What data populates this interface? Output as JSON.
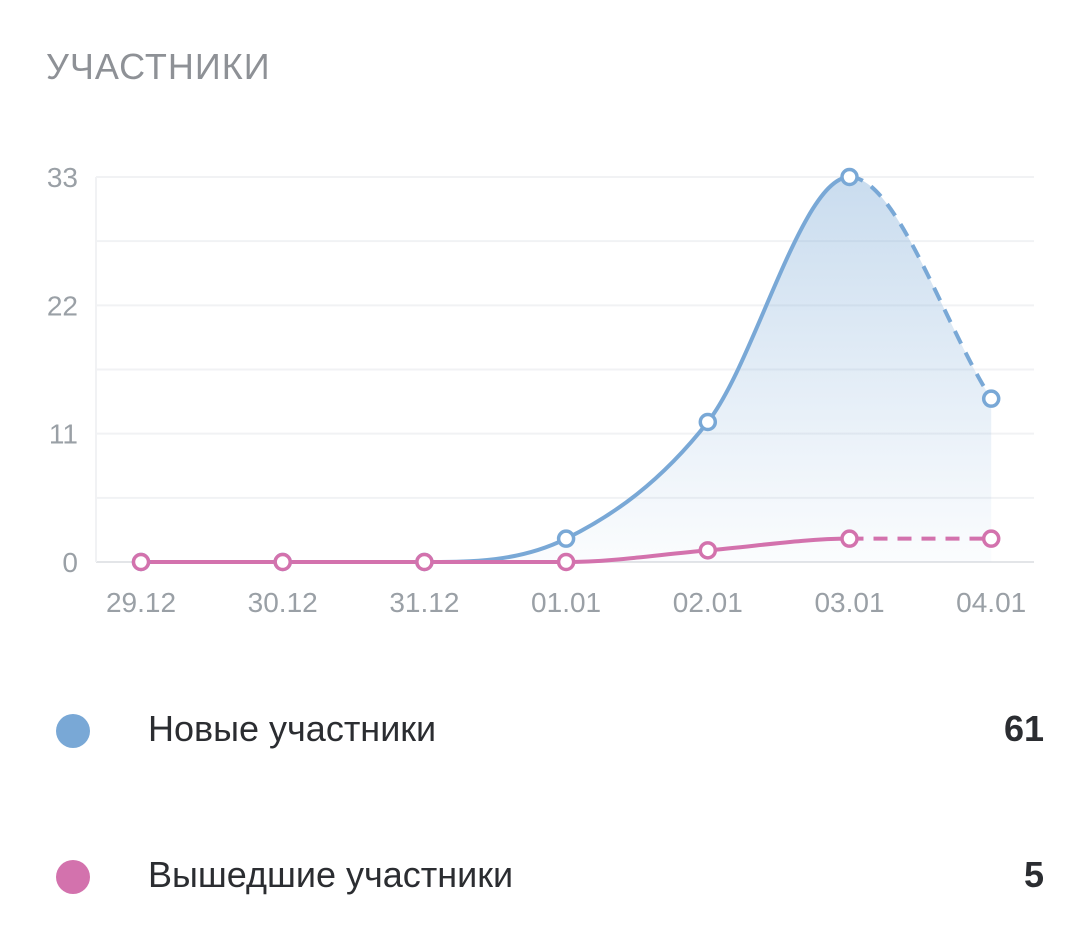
{
  "header": {
    "title": "УЧАСТНИКИ"
  },
  "legend": [
    {
      "label": "Новые участники",
      "value": "61",
      "color": "#79a8d6"
    },
    {
      "label": "Вышедшие участники",
      "value": "5",
      "color": "#d372ad"
    }
  ],
  "chart_data": {
    "type": "line",
    "title": "УЧАСТНИКИ",
    "xlabel": "",
    "ylabel": "",
    "categories": [
      "29.12",
      "30.12",
      "31.12",
      "01.01",
      "02.01",
      "03.01",
      "04.01"
    ],
    "y_ticks": [
      0,
      11,
      22,
      33
    ],
    "ylim": [
      0,
      33
    ],
    "grid": true,
    "series": [
      {
        "name": "Новые участники",
        "color": "#79a8d6",
        "values": [
          0,
          0,
          0,
          2,
          12,
          33,
          14
        ],
        "area": true,
        "last_segment_dashed": true
      },
      {
        "name": "Вышедшие участники",
        "color": "#d372ad",
        "values": [
          0,
          0,
          0,
          0,
          1,
          2,
          2
        ],
        "area": false,
        "last_segment_dashed": true
      }
    ]
  }
}
